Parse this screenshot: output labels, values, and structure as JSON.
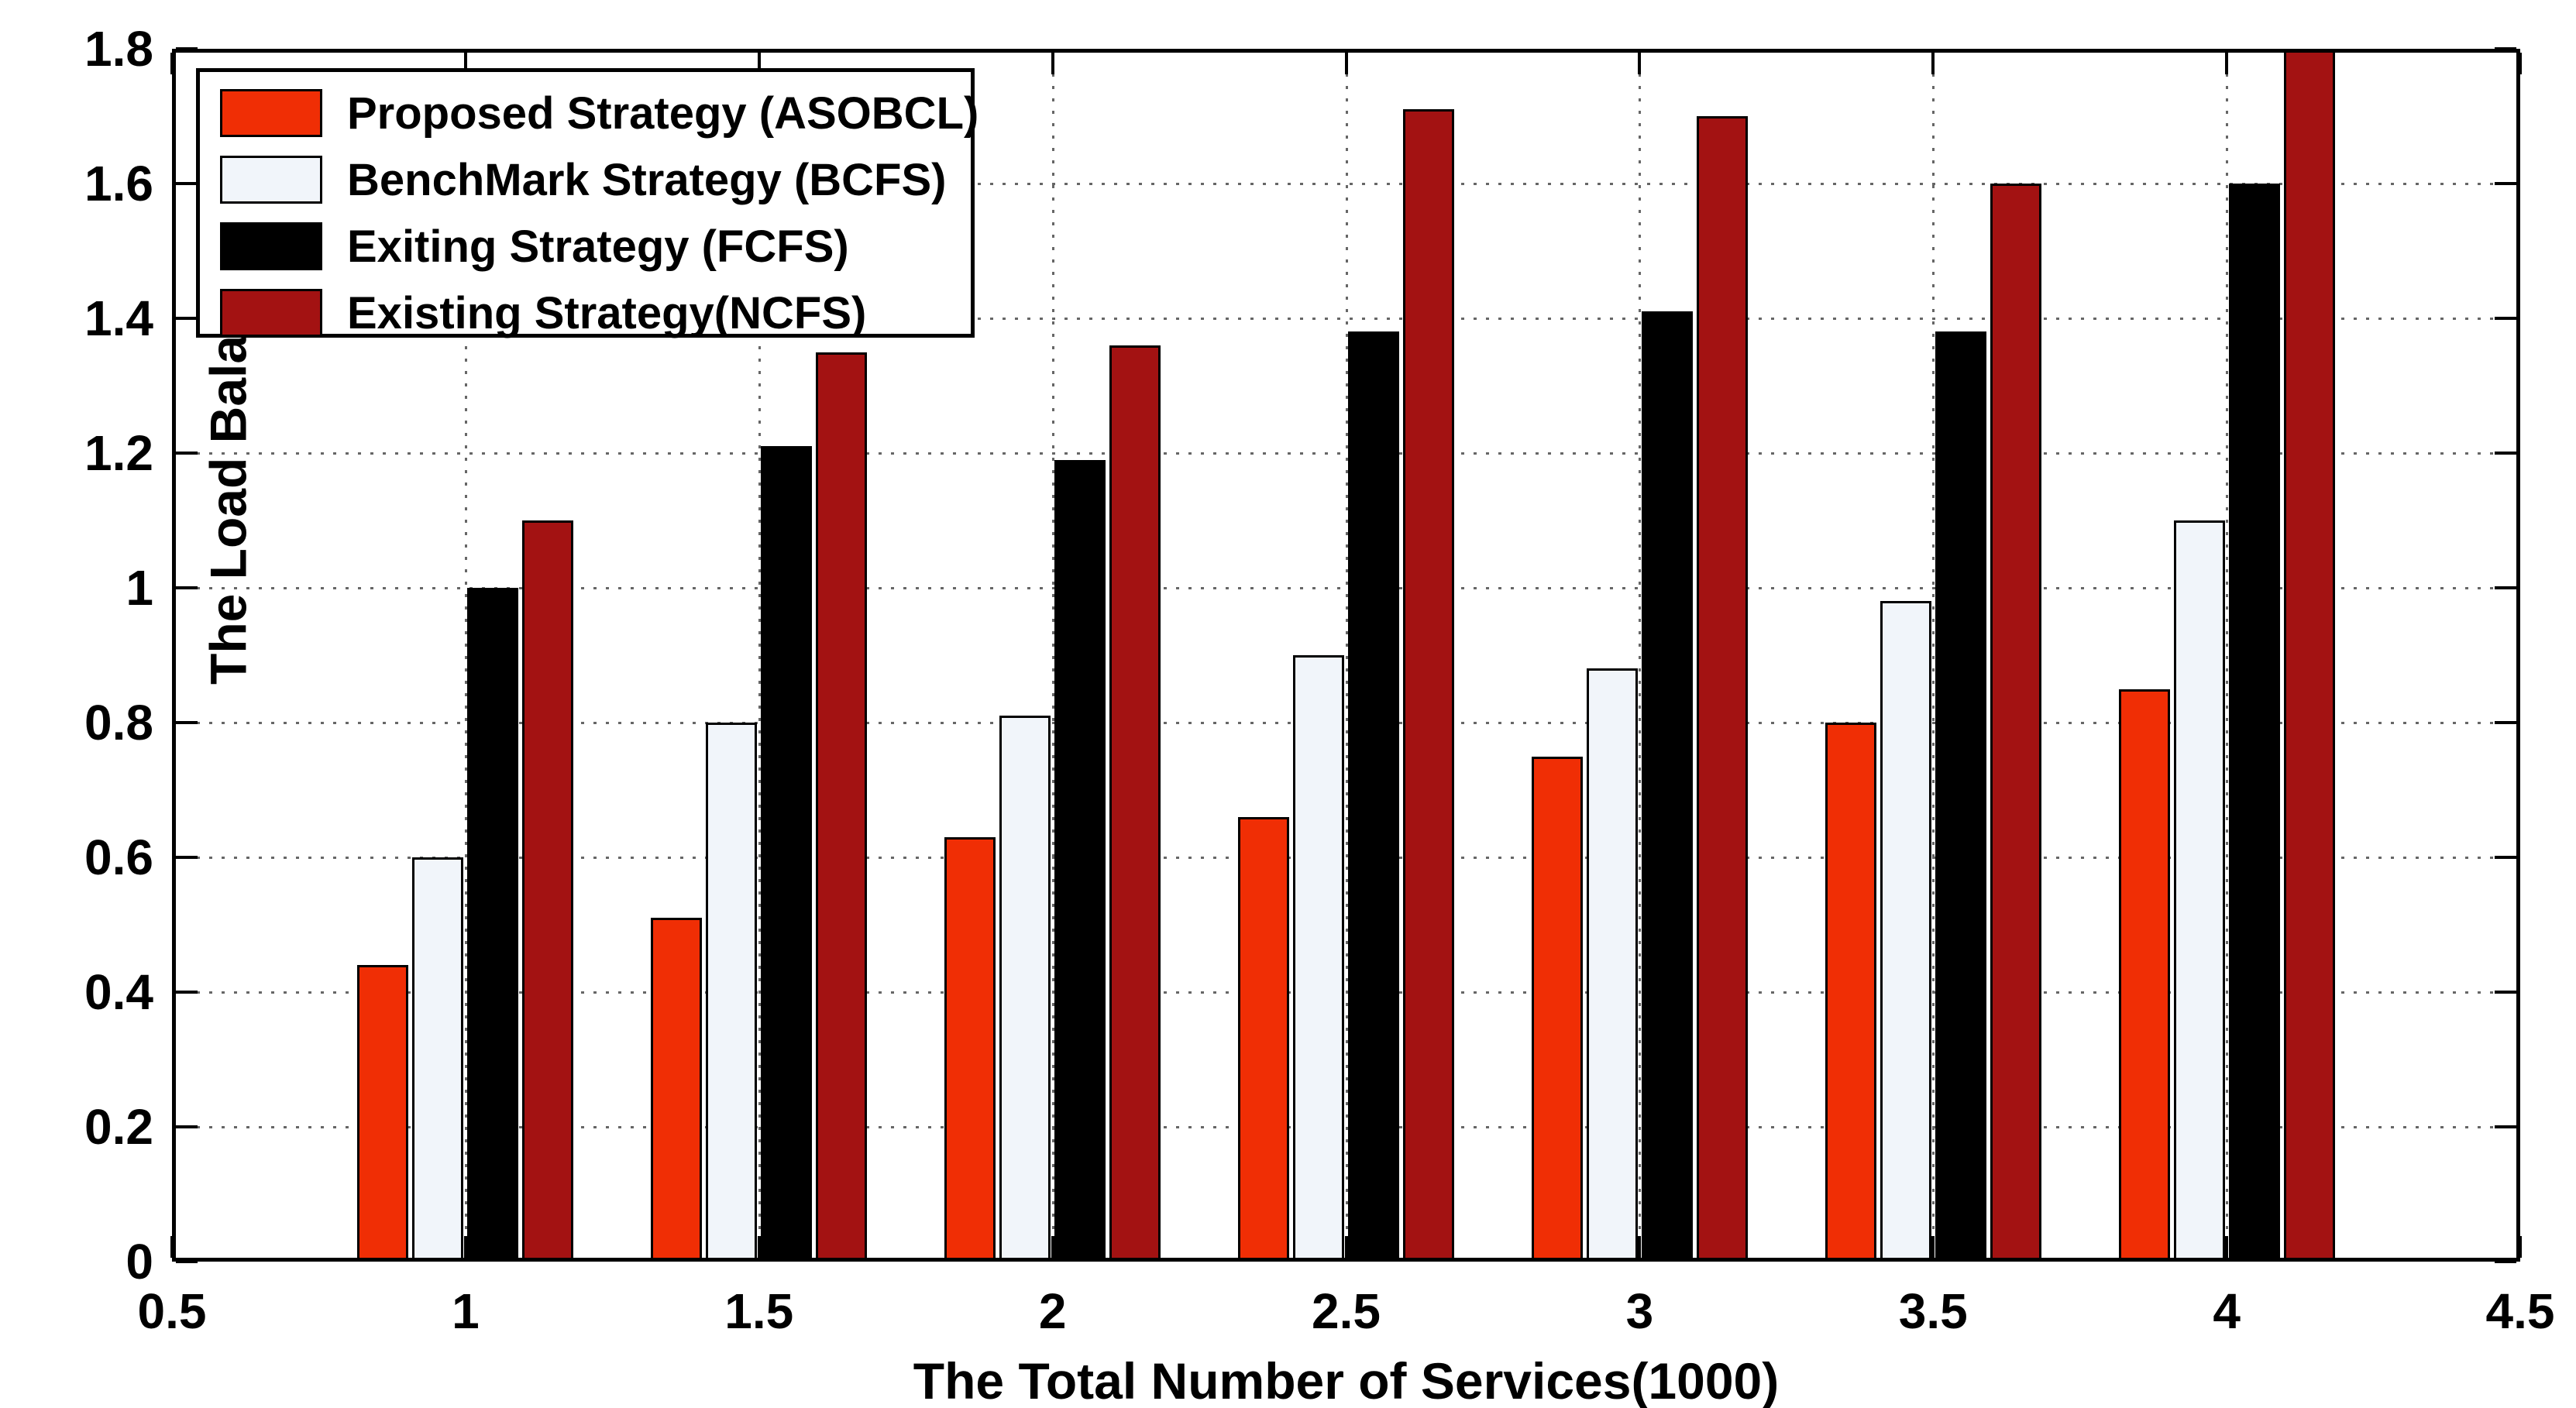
{
  "chart_data": {
    "type": "bar",
    "title": "",
    "xlabel": "The Total Number of Services(1000)",
    "ylabel": "The Load Balance",
    "xlim": [
      0.5,
      4.5
    ],
    "ylim": [
      0,
      1.8
    ],
    "grid": "dotted",
    "legend_position": "top-left",
    "x_tick_labels": [
      "0.5",
      "1",
      "1.5",
      "2",
      "2.5",
      "3",
      "3.5",
      "4",
      "4.5"
    ],
    "y_tick_labels": [
      "0",
      "0.2",
      "0.4",
      "0.6",
      "0.8",
      "1",
      "1.2",
      "1.4",
      "1.6",
      "1.8"
    ],
    "categories": [
      1,
      1.5,
      2,
      2.5,
      3,
      3.5,
      4
    ],
    "series": [
      {
        "name": "Proposed Strategy (ASOBCL)",
        "color": "#f02e05",
        "values": [
          0.44,
          0.51,
          0.63,
          0.66,
          0.75,
          0.8,
          0.85
        ]
      },
      {
        "name": "BenchMark Strategy (BCFS)",
        "color": "#f1f5fa",
        "values": [
          0.6,
          0.8,
          0.81,
          0.9,
          0.88,
          0.98,
          1.1
        ]
      },
      {
        "name": "Exiting Strategy (FCFS)",
        "color": "#000000",
        "values": [
          1.0,
          1.21,
          1.19,
          1.38,
          1.41,
          1.38,
          1.6
        ]
      },
      {
        "name": "Existing Strategy(NCFS)",
        "color": "#a31212",
        "values": [
          1.1,
          1.35,
          1.36,
          1.71,
          1.7,
          1.6,
          1.8
        ]
      }
    ]
  }
}
